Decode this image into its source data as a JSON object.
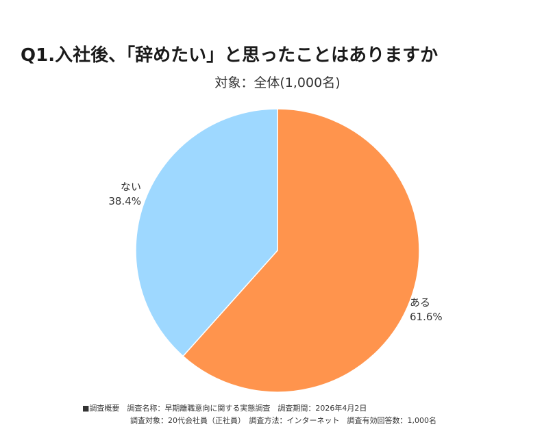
{
  "chart_data": {
    "type": "pie",
    "title": "Q1.入社後、「辞めたい」と思ったことはありますか",
    "subtitle": "対象：全体(1,000名)",
    "start_angle_deg": 0,
    "direction": "clockwise",
    "slices": [
      {
        "label": "ある",
        "value": 61.6,
        "display": "61.6%",
        "color": "#FF944D"
      },
      {
        "label": "ない",
        "value": 38.4,
        "display": "38.4%",
        "color": "#9ED8FF"
      }
    ]
  },
  "footer": {
    "line1": "■調査概要　調査名称：早期離職意向に関する実態調査　調査期間：2026年4月2日",
    "line2": "調査対象：20代会社員（正社員）　調査方法：インターネット　調査有効回答数：1,000名"
  }
}
